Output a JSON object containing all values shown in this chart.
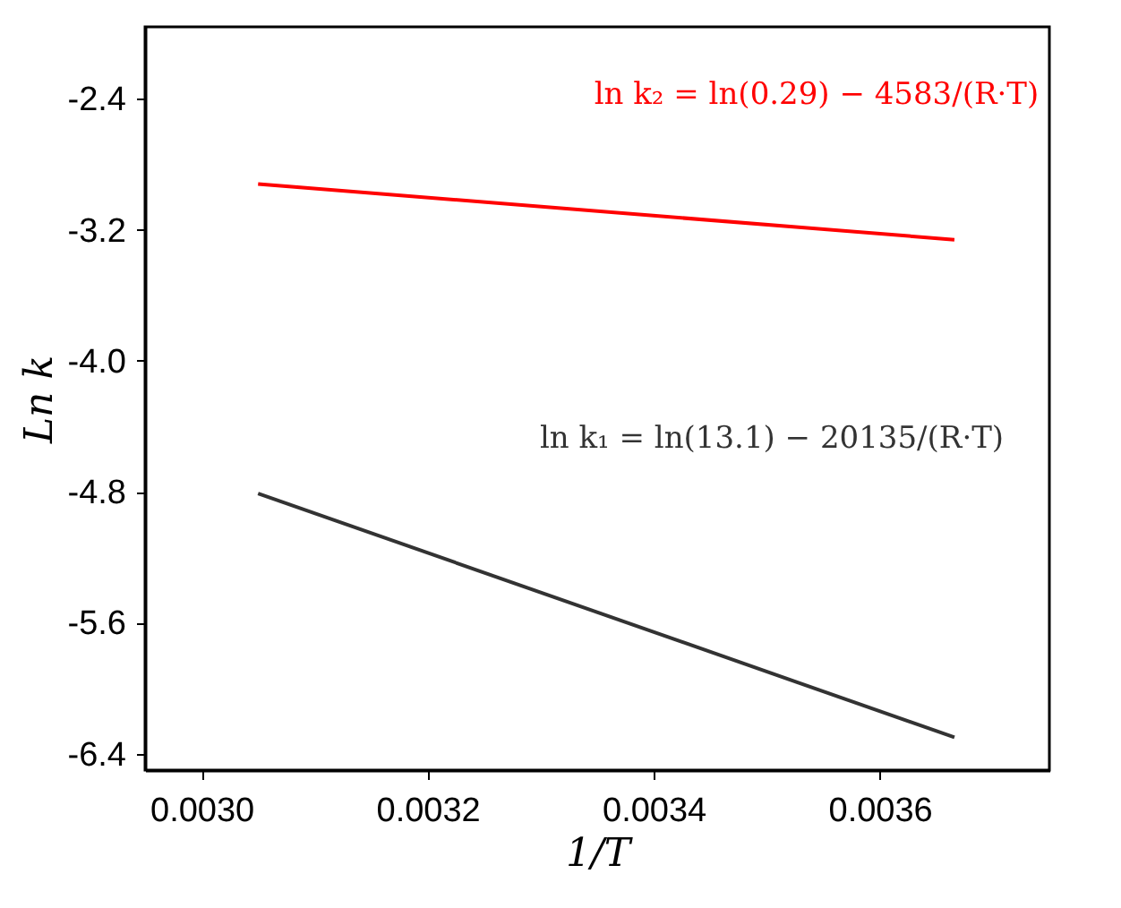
{
  "chart_data": {
    "type": "line",
    "xlabel": "1/T",
    "ylabel": "Ln k",
    "series": [
      {
        "color": "#ff0000",
        "values": [
          -2.92,
          -3.26
        ]
      },
      {
        "color": "#333333",
        "values": [
          -4.81,
          -6.3
        ]
      }
    ],
    "x": [
      0.00305,
      0.003666
    ],
    "annotations": [
      "ln k₂ = ln(0.29) − 4583/(R·T)",
      "ln k₁ = ln(13.1) − 20135/(R·T)"
    ],
    "xlim": [
      0.00295,
      0.00375
    ],
    "xticks": [
      {
        "value": 0.003,
        "label": "0.0030"
      },
      {
        "value": 0.0032,
        "label": "0.0032"
      },
      {
        "value": 0.0034,
        "label": "0.0034"
      },
      {
        "value": 0.0036,
        "label": "0.0036"
      }
    ],
    "ylim": [
      -6.5,
      -1.96
    ],
    "yticks": [
      {
        "value": -2.4,
        "label": "-2.4"
      },
      {
        "value": -3.2,
        "label": "-3.2"
      },
      {
        "value": -4.0,
        "label": "-4.0"
      },
      {
        "value": -4.8,
        "label": "-4.8"
      },
      {
        "value": -5.6,
        "label": "-5.6"
      },
      {
        "value": -6.4,
        "label": "-6.4"
      }
    ],
    "grid": false,
    "legend": false,
    "marker": "none",
    "line_style": "solid"
  }
}
